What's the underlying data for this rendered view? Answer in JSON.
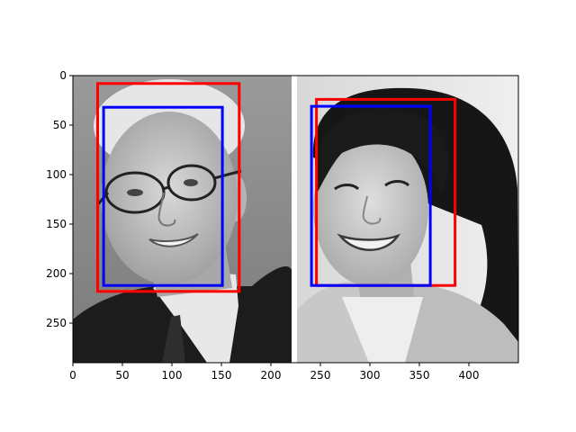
{
  "chart_data": {
    "type": "image-with-bounding-boxes",
    "title": "",
    "xlabel": "",
    "ylabel": "",
    "xlim": [
      0,
      450
    ],
    "ylim": [
      290,
      0
    ],
    "xticks": [
      0,
      50,
      100,
      150,
      200,
      250,
      300,
      350,
      400
    ],
    "yticks": [
      0,
      50,
      100,
      150,
      200,
      250
    ],
    "grid": false,
    "image_panels": [
      {
        "subject": "man-with-glasses-grayscale-photo",
        "x_range": [
          0,
          221
        ]
      },
      {
        "subject": "woman-smiling-grayscale-photo",
        "x_range": [
          225,
          450
        ]
      }
    ],
    "boxes": [
      {
        "color": "#ff0000",
        "x0": 25,
        "y0": 8,
        "x1": 168,
        "y1": 218
      },
      {
        "color": "#0000ff",
        "x0": 31,
        "y0": 32,
        "x1": 151,
        "y1": 212
      },
      {
        "color": "#ff0000",
        "x0": 246,
        "y0": 24,
        "x1": 386,
        "y1": 212
      },
      {
        "color": "#0000ff",
        "x0": 241,
        "y0": 31,
        "x1": 361,
        "y1": 212
      }
    ]
  }
}
